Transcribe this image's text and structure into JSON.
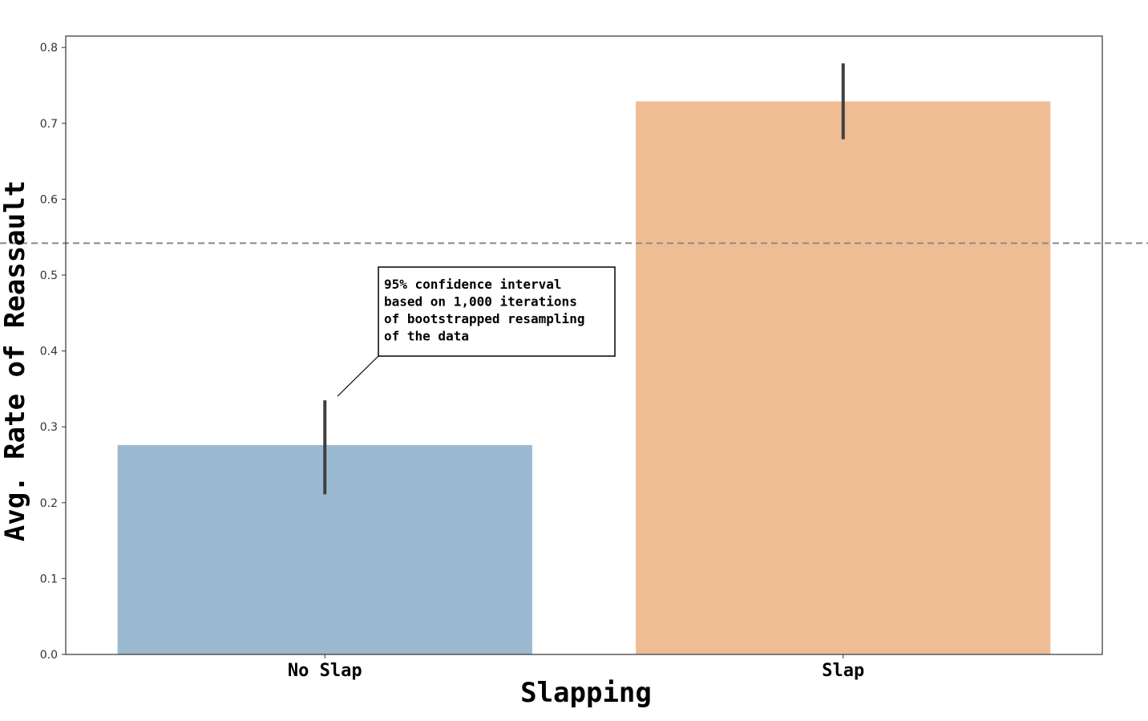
{
  "chart_data": {
    "type": "bar",
    "title": "",
    "xlabel": "Slapping",
    "ylabel": "Avg. Rate of Reassault",
    "ylim": [
      0,
      0.815
    ],
    "yticks": [
      0.0,
      0.1,
      0.2,
      0.3,
      0.4,
      0.5,
      0.6,
      0.7,
      0.8
    ],
    "ytick_labels": [
      "0.0",
      "0.1",
      "0.2",
      "0.3",
      "0.4",
      "0.5",
      "0.6",
      "0.7",
      "0.8"
    ],
    "categories": [
      "No Slap",
      "Slap"
    ],
    "values": [
      0.276,
      0.729
    ],
    "ci_low": [
      0.211,
      0.679
    ],
    "ci_high": [
      0.335,
      0.779
    ],
    "bar_colors": [
      "#9bb9d1",
      "#efbd94"
    ],
    "reference_line": {
      "y": 0.542,
      "style": "dashed",
      "color": "#8c8c8c"
    },
    "grid": false,
    "annotation": {
      "lines": [
        "95% confidence interval",
        "based on 1,000 iterations",
        "of bootstrapped resampling",
        "of the data"
      ]
    }
  }
}
